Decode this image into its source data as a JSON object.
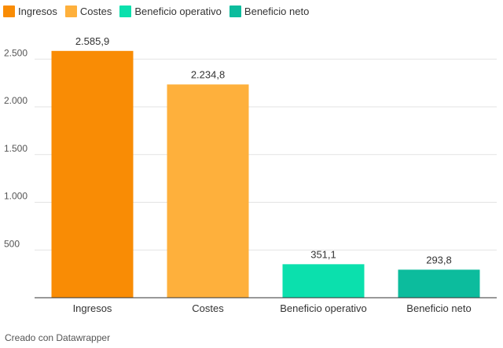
{
  "chart_data": {
    "type": "bar",
    "categories": [
      "Ingresos",
      "Costes",
      "Beneficio operativo",
      "Beneficio neto"
    ],
    "values": [
      2585.9,
      2234.8,
      351.1,
      293.8
    ],
    "value_labels": [
      "2.585,9",
      "2.234,8",
      "351,1",
      "293,8"
    ],
    "colors": [
      "#f98c05",
      "#feb03c",
      "#0be0ad",
      "#0cbc9d"
    ],
    "legend": [
      {
        "label": "Ingresos",
        "color": "#f98c05"
      },
      {
        "label": "Costes",
        "color": "#feb03c"
      },
      {
        "label": "Beneficio operativo",
        "color": "#0be0ad"
      },
      {
        "label": "Beneficio neto",
        "color": "#0cbc9d"
      }
    ],
    "y_ticks": [
      500,
      1000,
      1500,
      2000,
      2500
    ],
    "y_tick_labels": [
      "500",
      "1.000",
      "1.500",
      "2.000",
      "2.500"
    ],
    "ylim": [
      0,
      2700
    ],
    "grid": true,
    "legend_position": "top-left",
    "title": "",
    "xlabel": "",
    "ylabel": ""
  },
  "footer": {
    "credit": "Creado con Datawrapper"
  }
}
